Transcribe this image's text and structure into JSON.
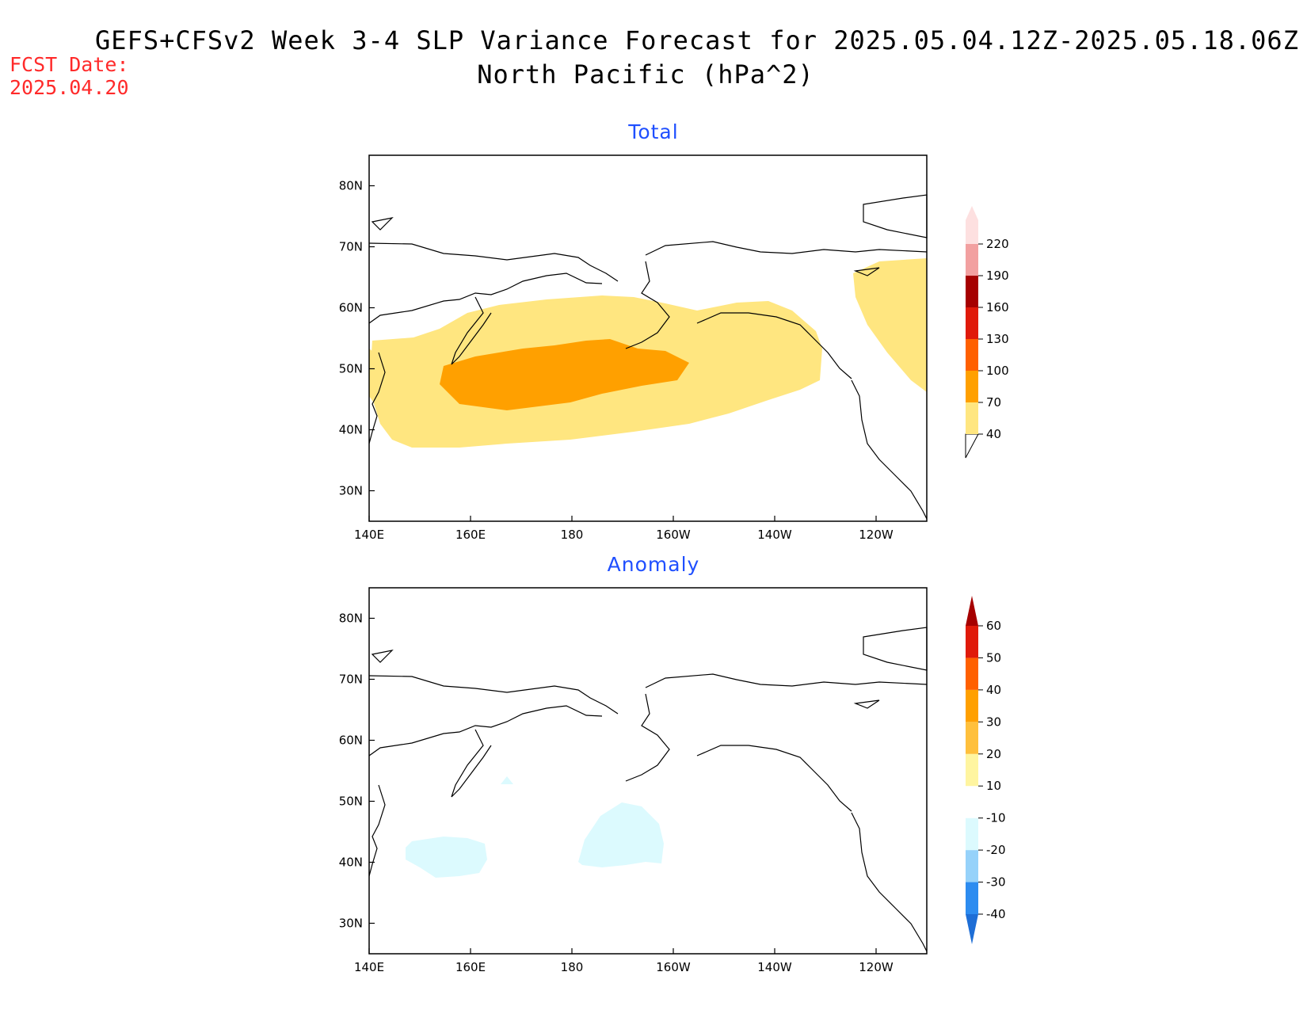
{
  "title": {
    "line1": "GEFS+CFSv2 Week 3-4 SLP Variance Forecast for 2025.05.04.12Z-2025.05.18.06Z",
    "line2": "North Pacific (hPa^2)"
  },
  "forecast_date": {
    "label": "FCST Date:",
    "value": "2025.04.20"
  },
  "map": {
    "lon_range": [
      140,
      250
    ],
    "lat_range": [
      25,
      85
    ],
    "lon_ticks": [
      "140E",
      "160E",
      "180",
      "160W",
      "140W",
      "120W"
    ],
    "lat_ticks": [
      "30N",
      "40N",
      "50N",
      "60N",
      "70N",
      "80N"
    ]
  },
  "panels": [
    {
      "title": "Total",
      "colorbar": {
        "labels": [
          "40",
          "70",
          "100",
          "130",
          "160",
          "190",
          "220"
        ],
        "colors": [
          "#ffe680",
          "#ffa000",
          "#ff6000",
          "#e01a0a",
          "#a60000",
          "#f2a0a0",
          "#fde0e0"
        ]
      }
    },
    {
      "title": "Anomaly",
      "colorbar": {
        "labels": [
          "-40",
          "-30",
          "-20",
          "-10",
          "10",
          "20",
          "30",
          "40",
          "50",
          "60"
        ],
        "colors": [
          "#1e6ed6",
          "#2d8cf0",
          "#96d2fa",
          "#dcfafe",
          "#ffffff",
          "#fff5a0",
          "#ffc03c",
          "#ffa000",
          "#ff6000",
          "#e01a0a",
          "#a60000"
        ]
      }
    }
  ]
}
